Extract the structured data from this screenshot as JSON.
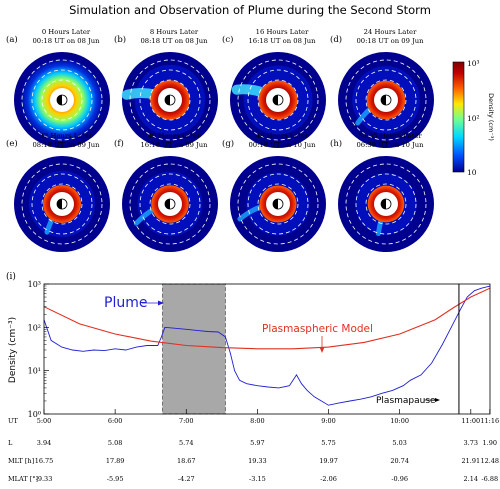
{
  "figure_title": "Simulation and Observation of Plume during the Second Storm",
  "colorbar": {
    "label": "Density (cm⁻³)",
    "ticks": [
      "10",
      "10²",
      "10³"
    ],
    "colors": [
      "#00008f",
      "#0050ff",
      "#00d8ff",
      "#70ff90",
      "#ffe800",
      "#ff6000",
      "#c00000",
      "#800000"
    ]
  },
  "panels": [
    {
      "label": "(a)",
      "hours": "0  Hours Later",
      "time": "00:18 UT on 08 Jun"
    },
    {
      "label": "(b)",
      "hours": "8  Hours Later",
      "time": "08:18 UT on 08 Jun"
    },
    {
      "label": "(c)",
      "hours": "16  Hours Later",
      "time": "16:18 UT on 08 Jun"
    },
    {
      "label": "(d)",
      "hours": "24  Hours Later",
      "time": "00:18 UT on 09 Jun"
    },
    {
      "label": "(e)",
      "hours": "32  Hours Later",
      "time": "08:18 UT on 09 Jun"
    },
    {
      "label": "(f)",
      "hours": "40  Hours Later",
      "time": "16:18 UT on 09 Jun"
    },
    {
      "label": "(g)",
      "hours": "48  Hours Later",
      "time": "00:18 UT on 10 Jun"
    },
    {
      "label": "(h)",
      "hours": "54.35  Hours Later",
      "time": "06:39 UT on 10 Jun"
    }
  ],
  "chart_data": {
    "type": "line",
    "panel_label": "(i)",
    "ylabel": "Density  (cm⁻³)",
    "yscale": "log",
    "ylim": [
      1,
      1000
    ],
    "y_ticks": [
      "10⁰",
      "10¹",
      "10²",
      "10³"
    ],
    "xlim_hours": [
      5.0,
      11.27
    ],
    "x_row_label": "UT",
    "x_ticks": [
      "5:00",
      "6:00",
      "7:00",
      "8:00",
      "9:00",
      "10:00",
      "11:00",
      "11:16"
    ],
    "shaded_interval": [
      "6:40",
      "7:33"
    ],
    "vertical_line": "10:50",
    "annotations": {
      "plume": "Plume",
      "model": "Plasmaspheric Model",
      "plasmapause": "Plasmapause"
    },
    "series": [
      {
        "name": "observed",
        "color": "#2020d0",
        "x": [
          5.0,
          5.1,
          5.25,
          5.4,
          5.55,
          5.7,
          5.85,
          6.0,
          6.15,
          6.3,
          6.45,
          6.6,
          6.65,
          6.7,
          6.85,
          7.0,
          7.15,
          7.3,
          7.45,
          7.55,
          7.62,
          7.68,
          7.75,
          7.85,
          8.0,
          8.15,
          8.3,
          8.45,
          8.55,
          8.62,
          8.7,
          8.8,
          8.9,
          9.0,
          9.15,
          9.3,
          9.45,
          9.6,
          9.75,
          9.9,
          10.05,
          10.15,
          10.3,
          10.45,
          10.6,
          10.75,
          10.85,
          10.95,
          11.05,
          11.15,
          11.27
        ],
        "y": [
          150,
          50,
          35,
          30,
          28,
          30,
          29,
          32,
          30,
          35,
          38,
          38,
          60,
          100,
          95,
          90,
          85,
          80,
          78,
          60,
          25,
          10,
          6,
          5,
          4.5,
          4.2,
          4.0,
          4.5,
          8,
          5,
          3.5,
          2.5,
          2.0,
          1.6,
          1.8,
          2.0,
          2.2,
          2.5,
          3.0,
          3.5,
          4.5,
          6,
          8,
          15,
          40,
          120,
          250,
          500,
          700,
          800,
          900
        ]
      },
      {
        "name": "Plasmaspheric Model",
        "color": "#e03020",
        "x": [
          5.0,
          5.5,
          6.0,
          6.5,
          7.0,
          7.5,
          8.0,
          8.5,
          9.0,
          9.5,
          10.0,
          10.5,
          10.75,
          11.0,
          11.27
        ],
        "y": [
          300,
          120,
          70,
          48,
          38,
          34,
          32,
          32,
          35,
          45,
          70,
          150,
          280,
          500,
          800
        ]
      }
    ]
  },
  "orbit_table": {
    "rows": [
      {
        "label": "L",
        "values": [
          "3.94",
          "5.08",
          "5.74",
          "5.97",
          "5.75",
          "5.03",
          "3.73",
          "1.90"
        ]
      },
      {
        "label": "MLT [h]",
        "values": [
          "16.75",
          "17.89",
          "18.67",
          "19.33",
          "19.97",
          "20.74",
          "21.91",
          "12.48"
        ]
      },
      {
        "label": "MLAT [°]",
        "values": [
          "-9.33",
          "-5.95",
          "-4.27",
          "-3.15",
          "-2.06",
          "-0.96",
          "2.14",
          "-6.88"
        ]
      }
    ]
  }
}
